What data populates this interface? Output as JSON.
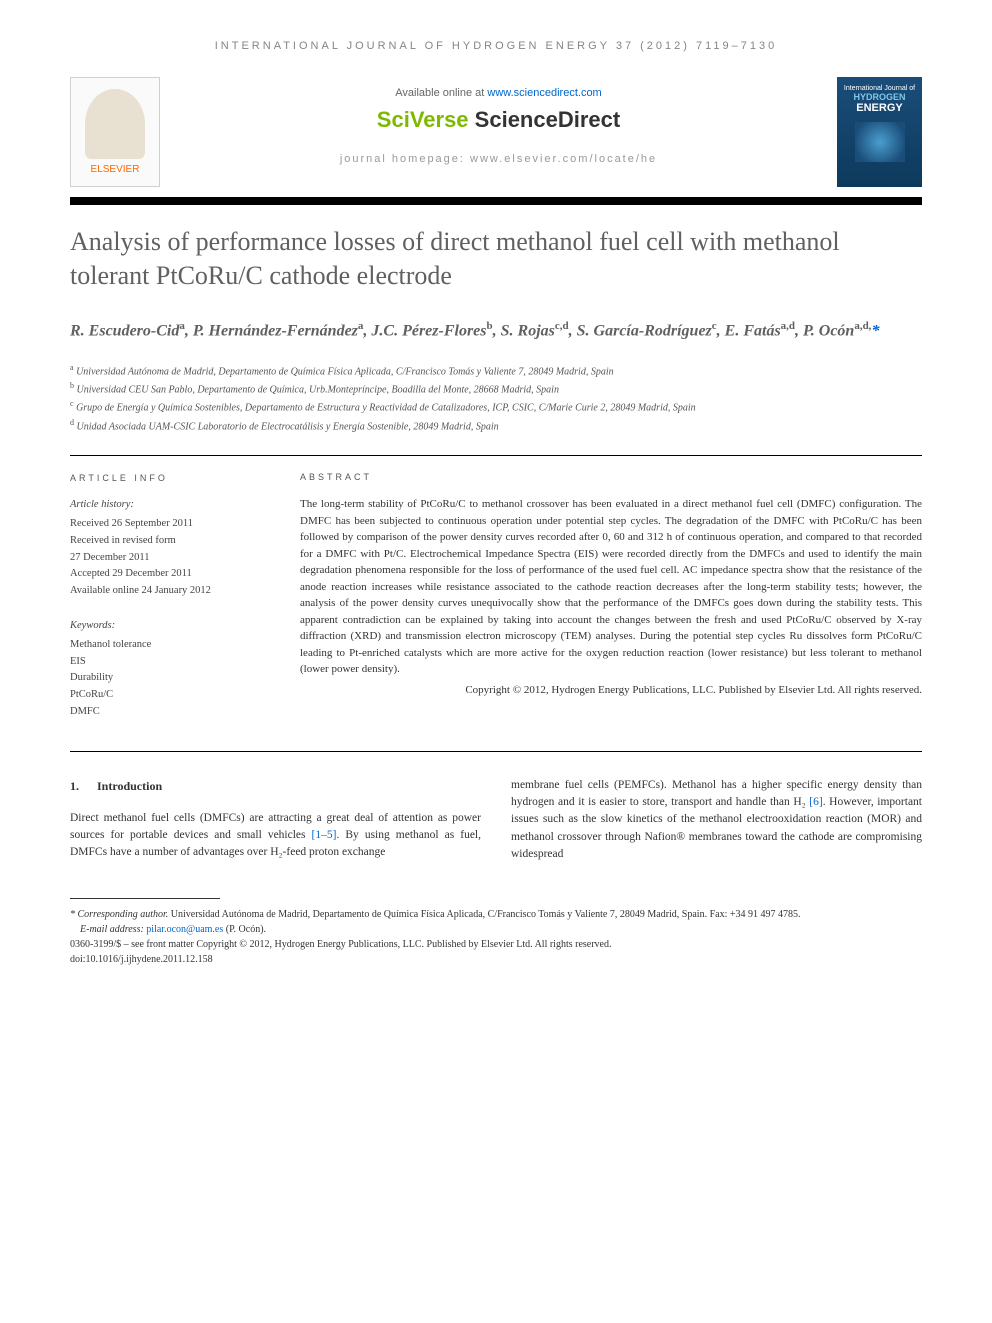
{
  "journal_header": "INTERNATIONAL JOURNAL OF HYDROGEN ENERGY 37 (2012) 7119–7130",
  "banner": {
    "elsevier": "ELSEVIER",
    "available_prefix": "Available online at ",
    "sciencedirect_url": "www.sciencedirect.com",
    "sciverse_1": "SciVerse ",
    "sciverse_2": "ScienceDirect",
    "homepage_prefix": "journal homepage: ",
    "homepage_url": "www.elsevier.com/locate/he",
    "cover_line1": "International Journal of",
    "cover_line2": "HYDROGEN",
    "cover_line3": "ENERGY"
  },
  "title": "Analysis of performance losses of direct methanol fuel cell with methanol tolerant PtCoRu/C cathode electrode",
  "authors_html": "R. Escudero-Cid",
  "authors": [
    {
      "name": "R. Escudero-Cid",
      "sup": "a"
    },
    {
      "name": "P. Hernández-Fernández",
      "sup": "a"
    },
    {
      "name": "J.C. Pérez-Flores",
      "sup": "b"
    },
    {
      "name": "S. Rojas",
      "sup": "c,d"
    },
    {
      "name": "S. García-Rodríguez",
      "sup": "c"
    },
    {
      "name": "E. Fatás",
      "sup": "a,d"
    },
    {
      "name": "P. Ocón",
      "sup": "a,d,*"
    }
  ],
  "affiliations": [
    {
      "sup": "a",
      "text": "Universidad Autónoma de Madrid, Departamento de Química Física Aplicada, C/Francisco Tomás y Valiente 7, 28049 Madrid, Spain"
    },
    {
      "sup": "b",
      "text": "Universidad CEU San Pablo, Departamento de Química, Urb.Montepríncipe, Boadilla del Monte, 28668 Madrid, Spain"
    },
    {
      "sup": "c",
      "text": "Grupo de Energía y Química Sostenibles, Departamento de Estructura y Reactividad de Catalizadores, ICP, CSIC, C/Marie Curie 2, 28049 Madrid, Spain"
    },
    {
      "sup": "d",
      "text": "Unidad Asociada UAM-CSIC Laboratorio de Electrocatálisis y Energía Sostenible, 28049 Madrid, Spain"
    }
  ],
  "info_label": "ARTICLE INFO",
  "abstract_label": "ABSTRACT",
  "history_label": "Article history:",
  "history": [
    "Received 26 September 2011",
    "Received in revised form",
    "27 December 2011",
    "Accepted 29 December 2011",
    "Available online 24 January 2012"
  ],
  "keywords_label": "Keywords:",
  "keywords": [
    "Methanol tolerance",
    "EIS",
    "Durability",
    "PtCoRu/C",
    "DMFC"
  ],
  "abstract": "The long-term stability of PtCoRu/C to methanol crossover has been evaluated in a direct methanol fuel cell (DMFC) configuration. The DMFC has been subjected to continuous operation under potential step cycles. The degradation of the DMFC with PtCoRu/C has been followed by comparison of the power density curves recorded after 0, 60 and 312 h of continuous operation, and compared to that recorded for a DMFC with Pt/C. Electrochemical Impedance Spectra (EIS) were recorded directly from the DMFCs and used to identify the main degradation phenomena responsible for the loss of performance of the used fuel cell. AC impedance spectra show that the resistance of the anode reaction increases while resistance associated to the cathode reaction decreases after the long-term stability tests; however, the analysis of the power density curves unequivocally show that the performance of the DMFCs goes down during the stability tests. This apparent contradiction can be explained by taking into account the changes between the fresh and used PtCoRu/C observed by X-ray diffraction (XRD) and transmission electron microscopy (TEM) analyses. During the potential step cycles Ru dissolves form PtCoRu/C leading to Pt-enriched catalysts which are more active for the oxygen reduction reaction (lower resistance) but less tolerant to methanol (lower power density).",
  "copyright": "Copyright © 2012, Hydrogen Energy Publications, LLC. Published by Elsevier Ltd. All rights reserved.",
  "section1": {
    "number": "1.",
    "title": "Introduction",
    "col1": "Direct methanol fuel cells (DMFCs) are attracting a great deal of attention as power sources for portable devices and small vehicles ",
    "col1_ref": "[1–5]",
    "col1_cont": ". By using methanol as fuel, DMFCs have a number of advantages over H₂-feed proton exchange",
    "col2": "membrane fuel cells (PEMFCs). Methanol has a higher specific energy density than hydrogen and it is easier to store, transport and handle than H₂ ",
    "col2_ref": "[6]",
    "col2_cont": ". However, important issues such as the slow kinetics of the methanol electrooxidation reaction (MOR) and methanol crossover through Nafion® membranes toward the cathode are compromising widespread"
  },
  "footer": {
    "corr_label": "* Corresponding author.",
    "corr_text": " Universidad Autónoma de Madrid, Departamento de Química Física Aplicada, C/Francisco Tomás y Valiente 7, 28049 Madrid, Spain. Fax: +34 91 497 4785.",
    "email_label": "E-mail address: ",
    "email": "pilar.ocon@uam.es",
    "email_suffix": " (P. Ocón).",
    "issn": "0360-3199/$ – see front matter Copyright © 2012, Hydrogen Energy Publications, LLC. Published by Elsevier Ltd. All rights reserved.",
    "doi": "doi:10.1016/j.ijhydene.2011.12.158"
  }
}
